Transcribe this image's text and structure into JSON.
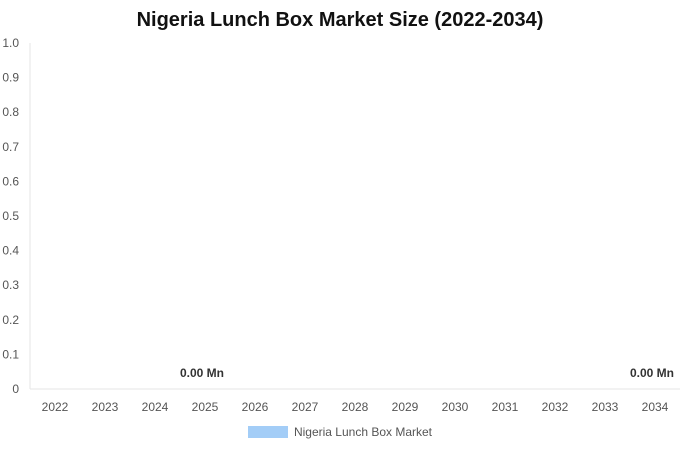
{
  "chart_data": {
    "type": "bar",
    "title": "Nigeria Lunch Box Market Size (2022-2034)",
    "categories": [
      "2022",
      "2023",
      "2024",
      "2025",
      "2026",
      "2027",
      "2028",
      "2029",
      "2030",
      "2031",
      "2032",
      "2033",
      "2034"
    ],
    "series": [
      {
        "name": "Nigeria Lunch Box Market",
        "values": [
          0,
          0,
          0,
          0,
          0,
          0,
          0,
          0,
          0,
          0,
          0,
          0,
          0
        ],
        "color": "#a3cdf7"
      }
    ],
    "data_labels": [
      {
        "category": "2025",
        "text": "0.00 Mn"
      },
      {
        "category": "2034",
        "text": "0.00 Mn"
      }
    ],
    "y_ticks": [
      "0",
      "0.1",
      "0.2",
      "0.3",
      "0.4",
      "0.5",
      "0.6",
      "0.7",
      "0.8",
      "0.9",
      "1.0"
    ],
    "ylim": [
      0,
      1
    ],
    "grid": false,
    "legend_position": "bottom"
  }
}
